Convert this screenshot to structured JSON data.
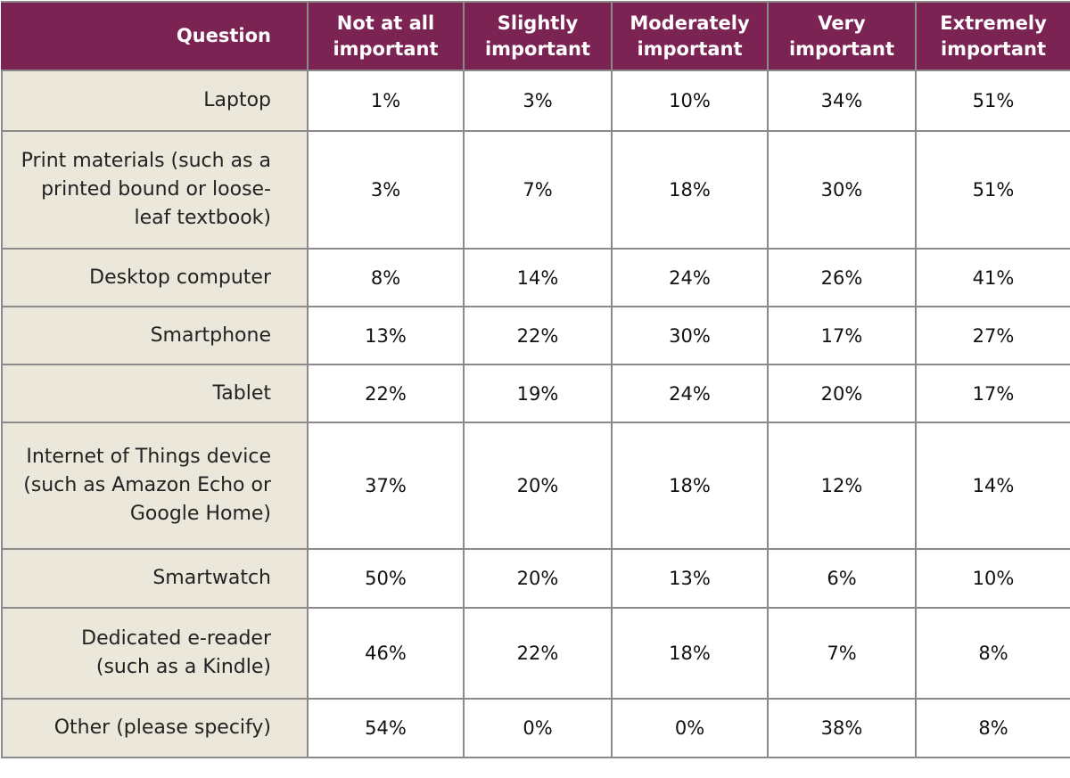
{
  "table": {
    "headers": {
      "question": "Question",
      "not_at_all": [
        "Not at all",
        "important"
      ],
      "slightly": [
        "Slightly",
        "important"
      ],
      "moderately": [
        "Moderately",
        "important"
      ],
      "very": [
        "Very",
        "important"
      ],
      "extremely": [
        "Extremely",
        "important"
      ]
    },
    "rows": [
      {
        "question": [
          "Laptop"
        ],
        "values": [
          "1%",
          "3%",
          "10%",
          "34%",
          "51%"
        ]
      },
      {
        "question": [
          "Print materials (such as a",
          "printed bound or loose-",
          "leaf textbook)"
        ],
        "values": [
          "3%",
          "7%",
          "18%",
          "30%",
          "51%"
        ]
      },
      {
        "question": [
          "Desktop computer"
        ],
        "values": [
          "8%",
          "14%",
          "24%",
          "26%",
          "41%"
        ]
      },
      {
        "question": [
          "Smartphone"
        ],
        "values": [
          "13%",
          "22%",
          "30%",
          "17%",
          "27%"
        ]
      },
      {
        "question": [
          "Tablet"
        ],
        "values": [
          "22%",
          "19%",
          "24%",
          "20%",
          "17%"
        ]
      },
      {
        "question": [
          "Internet of Things device",
          "(such as Amazon Echo or",
          "Google Home)"
        ],
        "values": [
          "37%",
          "20%",
          "18%",
          "12%",
          "14%"
        ]
      },
      {
        "question": [
          "Smartwatch"
        ],
        "values": [
          "50%",
          "20%",
          "13%",
          "6%",
          "10%"
        ]
      },
      {
        "question": [
          "Dedicated e-reader",
          "(such as a Kindle)"
        ],
        "values": [
          "46%",
          "22%",
          "18%",
          "7%",
          "8%"
        ]
      },
      {
        "question": [
          "Other (please specify)"
        ],
        "values": [
          "54%",
          "0%",
          "0%",
          "38%",
          "8%"
        ]
      }
    ]
  },
  "colors": {
    "header_bg": "#7b2352",
    "question_bg": "#ebe7db",
    "border": "#8a8a8a"
  }
}
